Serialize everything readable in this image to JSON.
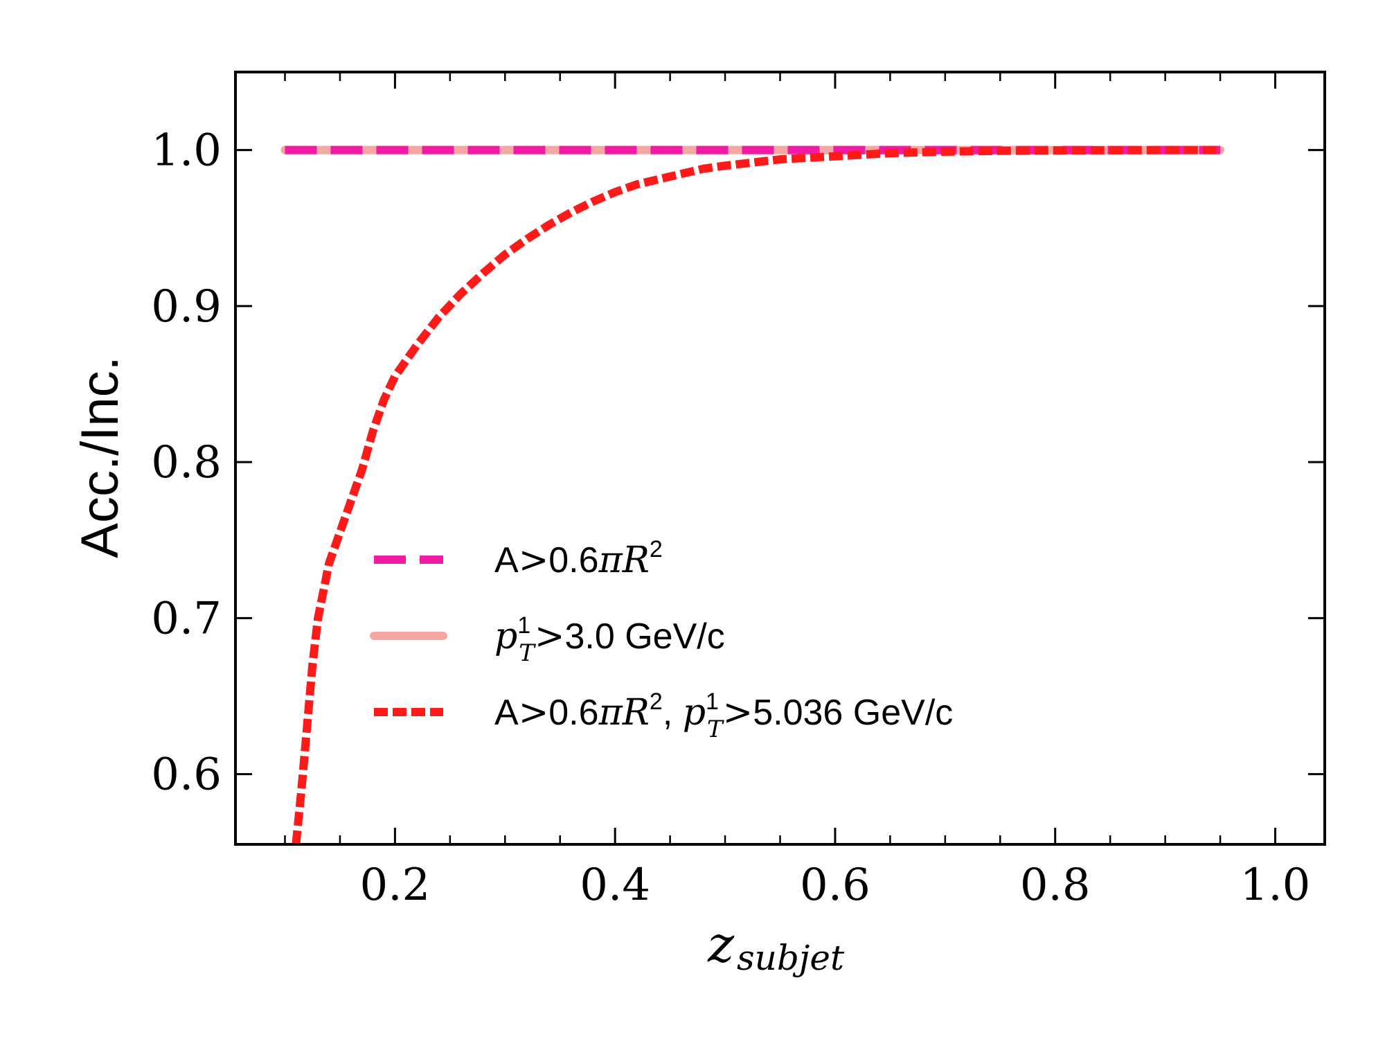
{
  "chart_data": {
    "type": "line",
    "xlabel": "z",
    "xlabel_sub": "subjet",
    "ylabel": "Acc./Inc.",
    "xlim": [
      0.055,
      1.045
    ],
    "ylim": [
      0.555,
      1.05
    ],
    "xticks": [
      0.2,
      0.4,
      0.6,
      0.8,
      1.0
    ],
    "xtick_labels": [
      "0.2",
      "0.4",
      "0.6",
      "0.8",
      "1.0"
    ],
    "yticks": [
      0.6,
      0.7,
      0.8,
      0.9,
      1.0
    ],
    "ytick_labels": [
      "0.6",
      "0.7",
      "0.8",
      "0.9",
      "1.0"
    ],
    "grid": false,
    "legend_position": "lower-center",
    "reference_line": {
      "y": 1.0,
      "x": [
        0.11,
        0.95
      ],
      "color": "#000000"
    },
    "series": [
      {
        "name": "A>0.6πR², p_T^1>5.036 GeV/c",
        "legend_parts": {
          "a": "A",
          "gt": ">",
          "b": "0.6",
          "pi": "π",
          "R": "R",
          "two": "2",
          "comma": ", ",
          "p": "p",
          "sup": "1",
          "sub": "T",
          "gt2": ">",
          "val": "5.036 GeV/c"
        },
        "color": "#ff1a1a",
        "style": "dotted-dash",
        "x": [
          0.11,
          0.115,
          0.12,
          0.125,
          0.13,
          0.14,
          0.15,
          0.16,
          0.17,
          0.18,
          0.19,
          0.2,
          0.22,
          0.24,
          0.26,
          0.28,
          0.3,
          0.32,
          0.34,
          0.36,
          0.38,
          0.4,
          0.42,
          0.45,
          0.48,
          0.5,
          0.55,
          0.6,
          0.65,
          0.7,
          0.75,
          0.8,
          0.85,
          0.9,
          0.95
        ],
        "y": [
          0.555,
          0.59,
          0.63,
          0.67,
          0.7,
          0.735,
          0.755,
          0.775,
          0.795,
          0.82,
          0.84,
          0.855,
          0.875,
          0.893,
          0.908,
          0.921,
          0.933,
          0.943,
          0.952,
          0.96,
          0.967,
          0.973,
          0.978,
          0.983,
          0.988,
          0.99,
          0.994,
          0.996,
          0.998,
          0.999,
          0.9995,
          0.9998,
          0.9999,
          1.0,
          1.0
        ]
      },
      {
        "name": "p_T^1>3.0 GeV/c",
        "legend_parts": {
          "p": "p",
          "sup": "1",
          "sub": "T",
          "gt": ">",
          "val": "3.0 GeV/c"
        },
        "color": "#f4a7a3",
        "style": "solid",
        "x": [
          0.1,
          0.2,
          0.3,
          0.4,
          0.5,
          0.6,
          0.7,
          0.8,
          0.9,
          0.95
        ],
        "y": [
          1.0,
          1.0,
          1.0,
          1.0,
          1.0,
          1.0,
          1.0,
          1.0,
          1.0,
          1.0
        ]
      },
      {
        "name": "A>0.6πR²",
        "legend_parts": {
          "a": "A",
          "gt": ">",
          "b": "0.6",
          "pi": "π",
          "R": "R",
          "two": "2"
        },
        "color": "#f01aa5",
        "style": "dashed",
        "x": [
          0.1,
          0.2,
          0.3,
          0.4,
          0.5,
          0.6,
          0.7,
          0.8,
          0.9,
          0.95
        ],
        "y": [
          1.0,
          1.0,
          1.0,
          1.0,
          1.0,
          1.0,
          1.0,
          1.0,
          1.0,
          1.0
        ]
      }
    ]
  }
}
